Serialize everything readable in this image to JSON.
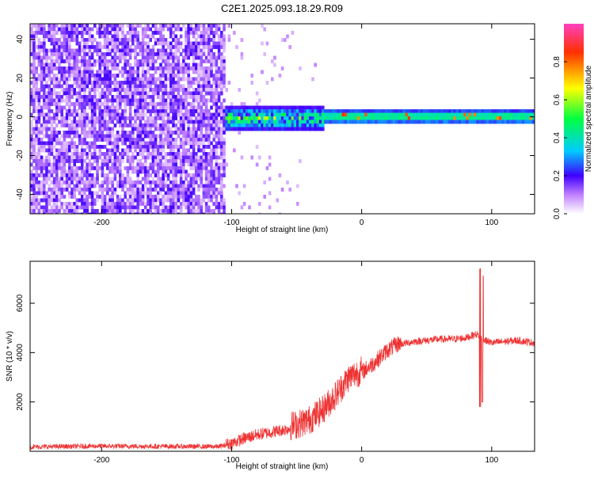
{
  "page": {
    "title": "C2E1.2025.093.18.29.R09"
  },
  "chart_data": [
    {
      "type": "heatmap",
      "xlabel": "Height of straight line (km)",
      "ylabel": "Frequency (Hz)",
      "xlim": [
        -255,
        133
      ],
      "ylim": [
        -50,
        48
      ],
      "xticks": [
        -200,
        -100,
        0,
        100
      ],
      "yticks": [
        -40,
        -20,
        0,
        20,
        40
      ],
      "grid": false,
      "colorbar": {
        "label": "Normalized spectral amplitude",
        "range": [
          0,
          1
        ],
        "ticks": [
          0.0,
          0.2,
          0.4,
          0.6,
          0.8
        ],
        "colormap": [
          "#ffffff",
          "#8000ff",
          "#0000ff",
          "#00ffff",
          "#00ff00",
          "#ffff00",
          "#ff0000",
          "#ff00ff"
        ]
      },
      "regions": [
        {
          "from_km": -255,
          "to_km": -105,
          "description_level": "noise",
          "mean_amplitude": 0.1
        },
        {
          "from_km": -105,
          "to_km": -30,
          "center_hz": 0,
          "halfwidth_hz": 6,
          "peak_amplitude": 0.4
        },
        {
          "from_km": -30,
          "to_km": 133,
          "center_hz": 1,
          "halfwidth_hz": 4,
          "peak_amplitude": 0.8
        }
      ]
    },
    {
      "type": "line",
      "xlabel": "Height of straight line (km)",
      "ylabel": "SNR (10 * v/v)",
      "xlim": [
        -255,
        133
      ],
      "ylim": [
        0,
        7700
      ],
      "xticks": [
        -200,
        -100,
        0,
        100
      ],
      "yticks": [
        2000,
        4000,
        6000
      ],
      "grid": false,
      "legend": "none",
      "series": [
        {
          "color": "#ee3333",
          "x": [
            -255,
            -200,
            -150,
            -110,
            -100,
            -90,
            -80,
            -70,
            -60,
            -50,
            -40,
            -30,
            -20,
            -10,
            0,
            10,
            20,
            30,
            40,
            50,
            60,
            70,
            80,
            88,
            92,
            95,
            100,
            110,
            120,
            133
          ],
          "y": [
            150,
            180,
            170,
            160,
            250,
            450,
            600,
            700,
            800,
            900,
            1100,
            1500,
            2100,
            2800,
            3100,
            3500,
            4000,
            4300,
            4400,
            4450,
            4500,
            4500,
            4550,
            4700,
            4600,
            4450,
            4350,
            4400,
            4450,
            4350
          ],
          "spikes": [
            {
              "x": 91,
              "high": 7400,
              "low": 1800
            },
            {
              "x": 93,
              "high": 7100,
              "low": 2000
            }
          ],
          "noise_amplitude": [
            {
              "from_km": -255,
              "to_km": -105,
              "amplitude": 200
            },
            {
              "from_km": -105,
              "to_km": -55,
              "amplitude": 500
            },
            {
              "from_km": -55,
              "to_km": 0,
              "amplitude": 1200
            },
            {
              "from_km": 0,
              "to_km": 30,
              "amplitude": 700
            },
            {
              "from_km": 30,
              "to_km": 133,
              "amplitude": 300
            }
          ]
        }
      ]
    }
  ]
}
